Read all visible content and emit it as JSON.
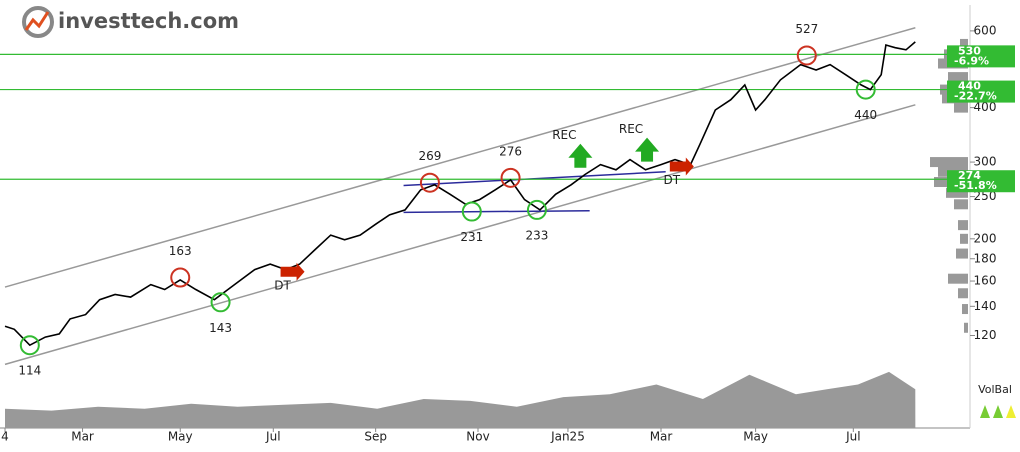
{
  "logo": "investtech.com",
  "chart_data": [
    {
      "type": "line",
      "log_y": true,
      "ylim": [
        100,
        670
      ],
      "yticks": [
        120,
        140,
        160,
        180,
        200,
        250,
        300,
        400,
        600
      ],
      "xlim": [
        0,
        590
      ],
      "xticks": [
        {
          "value": 0,
          "label": "4"
        },
        {
          "value": 50,
          "label": "Mar"
        },
        {
          "value": 113,
          "label": "May"
        },
        {
          "value": 173,
          "label": "Jul"
        },
        {
          "value": 239,
          "label": "Sep"
        },
        {
          "value": 305,
          "label": "Nov"
        },
        {
          "value": 363,
          "label": "Jan25"
        },
        {
          "value": 423,
          "label": "Mar"
        },
        {
          "value": 484,
          "label": "May"
        },
        {
          "value": 547,
          "label": "Jul"
        }
      ],
      "series": [
        {
          "color": "#000000",
          "x": [
            0,
            6,
            16,
            26,
            35,
            42,
            52,
            61,
            71,
            81,
            94,
            103,
            113,
            123,
            135,
            148,
            161,
            171,
            181,
            190,
            200,
            210,
            219,
            229,
            239,
            248,
            258,
            268,
            277,
            287,
            297,
            306,
            316,
            326,
            335,
            345,
            355,
            365,
            374,
            384,
            394,
            403,
            413,
            423,
            432,
            442,
            448,
            458,
            468,
            477,
            484,
            490,
            500,
            513,
            523,
            532,
            542,
            552,
            558,
            565,
            568,
            574,
            581,
            587
          ],
          "values": [
            126,
            124,
            114,
            119,
            121,
            131,
            134,
            145,
            149,
            147,
            157,
            153,
            161,
            153,
            145,
            157,
            170,
            175,
            170,
            175,
            189,
            204,
            199,
            204,
            216,
            227,
            233,
            259,
            266,
            253,
            240,
            246,
            259,
            273,
            246,
            233,
            253,
            266,
            281,
            296,
            288,
            304,
            288,
            296,
            304,
            296,
            329,
            395,
            417,
            451,
            395,
            417,
            463,
            502,
            488,
            502,
            476,
            451,
            440,
            476,
            557,
            549,
            543,
            566
          ]
        }
      ],
      "channel": [
        {
          "color": "#999999",
          "x": [
            0,
            587
          ],
          "values": [
            155,
            610
          ]
        },
        {
          "color": "#999999",
          "x": [
            0,
            587
          ],
          "values": [
            103,
            406
          ]
        }
      ],
      "trend_lines": [
        {
          "color": "#2b2b9b",
          "x": [
            257,
            426
          ],
          "values": [
            265,
            285
          ]
        },
        {
          "color": "#2b2b9b",
          "x": [
            257,
            377
          ],
          "values": [
            230,
            232
          ]
        }
      ],
      "level_color": "#33bb33",
      "levels": [
        {
          "value": 530,
          "change": "-6.9%"
        },
        {
          "value": 440,
          "change": "-22.7%"
        },
        {
          "value": 274,
          "change": "-51.8%"
        }
      ],
      "extremes": [
        {
          "x": 16,
          "value": 114,
          "color": "#33bb33",
          "label_position": "below"
        },
        {
          "x": 113,
          "value": 163,
          "color": "#cc3322",
          "label_position": "above"
        },
        {
          "x": 139,
          "value": 143,
          "color": "#33bb33",
          "label_position": "below"
        },
        {
          "x": 274,
          "value": 269,
          "color": "#cc3322",
          "label_position": "above"
        },
        {
          "x": 301,
          "value": 231,
          "color": "#33bb33",
          "label_position": "below"
        },
        {
          "x": 326,
          "value": 276,
          "color": "#cc3322",
          "label_position": "above"
        },
        {
          "x": 343,
          "value": 233,
          "color": "#33bb33",
          "label_position": "below"
        },
        {
          "x": 517,
          "value": 527,
          "color": "#cc3322",
          "label_position": "above"
        },
        {
          "x": 555,
          "value": 440,
          "color": "#33bb33",
          "label_position": "below"
        }
      ],
      "signals": [
        {
          "label": "DT",
          "x": 188,
          "value": 168,
          "color": "#cc2200",
          "direction": "down"
        },
        {
          "label": "REC",
          "x": 371,
          "value": 307,
          "color": "#22aa22",
          "direction": "up"
        },
        {
          "label": "REC",
          "x": 414,
          "value": 317,
          "color": "#22aa22",
          "direction": "up"
        },
        {
          "label": "DT",
          "x": 439,
          "value": 293,
          "color": "#cc2200",
          "direction": "down"
        }
      ],
      "volume_profile": {
        "color": "#999999",
        "prices": [
          560,
          530,
          505,
          470,
          440,
          420,
          400,
          300,
          285,
          270,
          255,
          240,
          215,
          200,
          185,
          162,
          150,
          138,
          125
        ],
        "sizes": [
          8,
          24,
          30,
          20,
          28,
          26,
          14,
          38,
          30,
          34,
          22,
          14,
          10,
          8,
          12,
          20,
          10,
          6,
          4
        ]
      }
    },
    {
      "type": "area",
      "color": "#999999",
      "label": "VolBal",
      "ylim": [
        0,
        60
      ],
      "x": [
        0,
        30,
        60,
        90,
        120,
        150,
        180,
        210,
        240,
        270,
        300,
        330,
        360,
        390,
        420,
        450,
        480,
        510,
        530,
        550,
        570,
        587
      ],
      "values": [
        20,
        18,
        22,
        20,
        25,
        22,
        24,
        26,
        20,
        30,
        28,
        22,
        32,
        35,
        45,
        30,
        55,
        35,
        40,
        45,
        58,
        40
      ]
    }
  ]
}
